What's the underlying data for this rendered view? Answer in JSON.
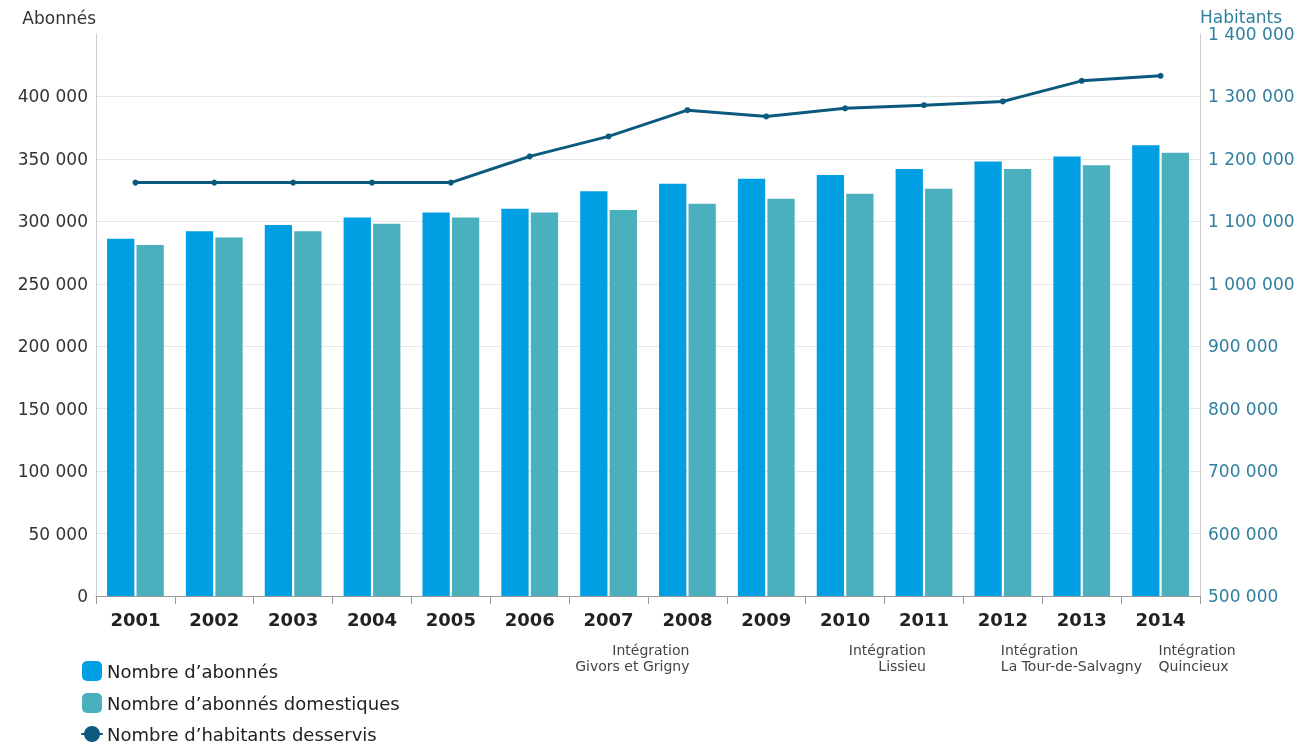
{
  "chart_data": {
    "type": "bar",
    "ylabel": "Abonnés",
    "y2label": "Habitants",
    "categories": [
      "2001",
      "2002",
      "2003",
      "2004",
      "2005",
      "2006",
      "2007",
      "2008",
      "2009",
      "2010",
      "2011",
      "2012",
      "2013",
      "2014"
    ],
    "series": [
      {
        "name": "Nombre d’abonnés",
        "color": "#009fe3",
        "values": [
          286000,
          292000,
          297000,
          303000,
          307000,
          310000,
          324000,
          330000,
          334000,
          337000,
          342000,
          348000,
          352000,
          361000
        ]
      },
      {
        "name": "Nombre d’abonnés domestiques",
        "color": "#4bb0bd",
        "values": [
          281000,
          287000,
          292000,
          298000,
          303000,
          307000,
          309000,
          314000,
          318000,
          322000,
          326000,
          342000,
          345000,
          355000
        ]
      },
      {
        "name": "Nombre d’habitants desservis",
        "type": "line",
        "axis": "y2",
        "color": "#0b5a7e",
        "values": [
          1162000,
          1162000,
          1162000,
          1162000,
          1162000,
          1204000,
          1236000,
          1278000,
          1268000,
          1281000,
          1286000,
          1292000,
          1325000,
          1333000
        ]
      }
    ],
    "ylim": [
      0,
      450000
    ],
    "yticks": [
      {
        "value": 0,
        "label": "0"
      },
      {
        "value": 50000,
        "label": "50 000"
      },
      {
        "value": 100000,
        "label": "100 000"
      },
      {
        "value": 150000,
        "label": "150 000"
      },
      {
        "value": 200000,
        "label": "200 000"
      },
      {
        "value": 250000,
        "label": "250 000"
      },
      {
        "value": 300000,
        "label": "300 000"
      },
      {
        "value": 350000,
        "label": "350 000"
      },
      {
        "value": 400000,
        "label": "400 000"
      }
    ],
    "y2lim": [
      500000,
      1400000
    ],
    "y2ticks": [
      {
        "value": 500000,
        "label": "500 000"
      },
      {
        "value": 600000,
        "label": "600 000"
      },
      {
        "value": 700000,
        "label": "700 000"
      },
      {
        "value": 800000,
        "label": "800 000"
      },
      {
        "value": 900000,
        "label": "900 000"
      },
      {
        "value": 1000000,
        "label": "1 000 000"
      },
      {
        "value": 1100000,
        "label": "1 100 000"
      },
      {
        "value": 1200000,
        "label": "1 200 000"
      },
      {
        "value": 1300000,
        "label": "1 300 000"
      },
      {
        "value": 1400000,
        "label": "1 400 000"
      }
    ],
    "annotations": [
      "Intégration\nGivors et Grigny",
      "Intégration\nLissieu",
      "Intégration\nLa Tour-de-Salvagny",
      "Intégration\nQuincieux"
    ],
    "grid": "y",
    "legend": "bottom left",
    "marker": "circle",
    "line_style": "solid"
  }
}
